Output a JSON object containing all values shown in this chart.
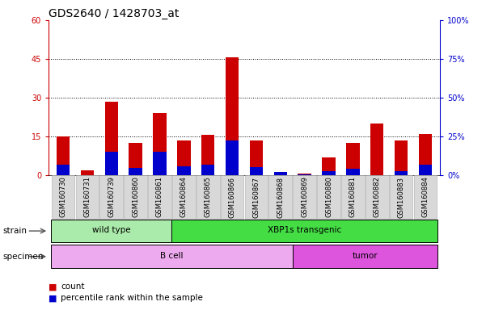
{
  "title": "GDS2640 / 1428703_at",
  "samples": [
    "GSM160730",
    "GSM160731",
    "GSM160739",
    "GSM160860",
    "GSM160861",
    "GSM160864",
    "GSM160865",
    "GSM160866",
    "GSM160867",
    "GSM160868",
    "GSM160869",
    "GSM160880",
    "GSM160881",
    "GSM160882",
    "GSM160883",
    "GSM160884"
  ],
  "count_values": [
    15.0,
    2.0,
    28.5,
    12.5,
    24.0,
    13.5,
    15.5,
    45.5,
    13.5,
    1.0,
    0.5,
    7.0,
    12.5,
    20.0,
    13.5,
    16.0
  ],
  "percentile_values": [
    7.0,
    0.0,
    15.0,
    4.5,
    15.0,
    5.5,
    6.5,
    22.5,
    5.0,
    2.0,
    0.5,
    2.5,
    4.0,
    0.0,
    2.5,
    6.5
  ],
  "count_color": "#cc0000",
  "percentile_color": "#0000cc",
  "bar_width": 0.55,
  "ylim_left": [
    0,
    60
  ],
  "ylim_right": [
    0,
    100
  ],
  "yticks_left": [
    0,
    15,
    30,
    45,
    60
  ],
  "yticks_right": [
    0,
    25,
    50,
    75,
    100
  ],
  "ytick_labels_left": [
    "0",
    "15",
    "30",
    "45",
    "60"
  ],
  "ytick_labels_right": [
    "0%",
    "25%",
    "50%",
    "75%",
    "100%"
  ],
  "grid_values": [
    15,
    30,
    45
  ],
  "strain_groups": [
    {
      "label": "wild type",
      "start": 0,
      "end": 4,
      "color": "#aaeaaa"
    },
    {
      "label": "XBP1s transgenic",
      "start": 5,
      "end": 15,
      "color": "#44dd44"
    }
  ],
  "specimen_groups": [
    {
      "label": "B cell",
      "start": 0,
      "end": 9,
      "color": "#eeaaee"
    },
    {
      "label": "tumor",
      "start": 10,
      "end": 15,
      "color": "#dd55dd"
    }
  ],
  "strain_label": "strain",
  "specimen_label": "specimen",
  "legend_count_label": "count",
  "legend_percentile_label": "percentile rank within the sample",
  "bg_color": "#d8d8d8",
  "left_tick_color": "#cc0000",
  "right_tick_color": "#0000cc",
  "title_fontsize": 10,
  "tick_fontsize": 7,
  "sample_fontsize": 6
}
